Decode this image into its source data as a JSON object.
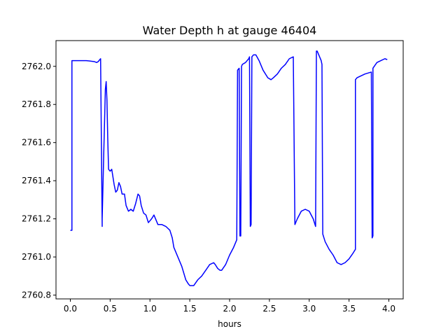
{
  "chart_data": {
    "type": "line",
    "title": "Water Depth h at gauge 46404",
    "xlabel": "hours",
    "ylabel": "",
    "xlim": [
      -0.18,
      4.18
    ],
    "ylim": [
      2760.78,
      2762.135
    ],
    "xticks": [
      0.0,
      0.5,
      1.0,
      1.5,
      2.0,
      2.5,
      3.0,
      3.5,
      4.0
    ],
    "xtick_labels": [
      "0.0",
      "0.5",
      "1.0",
      "1.5",
      "2.0",
      "2.5",
      "3.0",
      "3.5",
      "4.0"
    ],
    "yticks": [
      2760.8,
      2761.0,
      2761.2,
      2761.4,
      2761.6,
      2761.8,
      2762.0
    ],
    "ytick_labels": [
      "2760.8",
      "2761.0",
      "2761.2",
      "2761.4",
      "2761.6",
      "2761.8",
      "2762.0"
    ],
    "grid": false,
    "series": [
      {
        "color": "#0000ff",
        "x": [
          0.0,
          0.02,
          0.02,
          0.1,
          0.2,
          0.3,
          0.33,
          0.35,
          0.38,
          0.4,
          0.4,
          0.42,
          0.44,
          0.45,
          0.46,
          0.47,
          0.48,
          0.5,
          0.52,
          0.55,
          0.57,
          0.59,
          0.61,
          0.63,
          0.65,
          0.68,
          0.7,
          0.73,
          0.76,
          0.79,
          0.82,
          0.85,
          0.87,
          0.89,
          0.92,
          0.95,
          0.98,
          1.02,
          1.05,
          1.08,
          1.1,
          1.13,
          1.15,
          1.2,
          1.25,
          1.28,
          1.3,
          1.35,
          1.4,
          1.45,
          1.48,
          1.5,
          1.55,
          1.6,
          1.65,
          1.7,
          1.75,
          1.8,
          1.82,
          1.85,
          1.88,
          1.9,
          1.95,
          2.0,
          2.05,
          2.09,
          2.1,
          2.12,
          2.13,
          2.14,
          2.15,
          2.16,
          2.2,
          2.24,
          2.25,
          2.26,
          2.27,
          2.28,
          2.3,
          2.33,
          2.37,
          2.42,
          2.48,
          2.52,
          2.55,
          2.6,
          2.65,
          2.7,
          2.75,
          2.8,
          2.82,
          2.83,
          2.85,
          2.9,
          2.95,
          3.0,
          3.05,
          3.08,
          3.09,
          3.1,
          3.12,
          3.15,
          3.16,
          3.17,
          3.2,
          3.25,
          3.3,
          3.35,
          3.4,
          3.45,
          3.5,
          3.55,
          3.58,
          3.58,
          3.6,
          3.7,
          3.78,
          3.79,
          3.8,
          3.8,
          3.85,
          3.9,
          3.95,
          3.98
        ],
        "y": [
          2761.14,
          2761.14,
          2762.03,
          2762.03,
          2762.03,
          2762.025,
          2762.02,
          2762.025,
          2762.04,
          2761.16,
          2761.2,
          2761.55,
          2761.88,
          2761.92,
          2761.82,
          2761.62,
          2761.46,
          2761.45,
          2761.46,
          2761.38,
          2761.34,
          2761.35,
          2761.39,
          2761.37,
          2761.33,
          2761.33,
          2761.27,
          2761.24,
          2761.25,
          2761.24,
          2761.28,
          2761.33,
          2761.32,
          2761.27,
          2761.23,
          2761.22,
          2761.18,
          2761.2,
          2761.22,
          2761.19,
          2761.17,
          2761.17,
          2761.17,
          2761.16,
          2761.14,
          2761.1,
          2761.05,
          2761.0,
          2760.95,
          2760.88,
          2760.86,
          2760.85,
          2760.85,
          2760.88,
          2760.9,
          2760.93,
          2760.96,
          2760.97,
          2760.96,
          2760.94,
          2760.93,
          2760.93,
          2760.96,
          2761.01,
          2761.05,
          2761.09,
          2761.98,
          2761.99,
          2761.11,
          2761.11,
          2762.0,
          2762.01,
          2762.02,
          2762.04,
          2762.05,
          2761.16,
          2761.17,
          2762.05,
          2762.06,
          2762.06,
          2762.03,
          2761.98,
          2761.94,
          2761.93,
          2761.94,
          2761.96,
          2761.99,
          2762.01,
          2762.04,
          2762.05,
          2761.17,
          2761.18,
          2761.2,
          2761.24,
          2761.25,
          2761.24,
          2761.2,
          2761.16,
          2762.08,
          2762.08,
          2762.06,
          2762.03,
          2762.01,
          2761.12,
          2761.08,
          2761.04,
          2761.01,
          2760.97,
          2760.96,
          2760.97,
          2760.99,
          2761.02,
          2761.04,
          2761.93,
          2761.94,
          2761.96,
          2761.97,
          2761.1,
          2761.11,
          2761.99,
          2762.02,
          2762.03,
          2762.04,
          2762.035
        ]
      }
    ]
  }
}
